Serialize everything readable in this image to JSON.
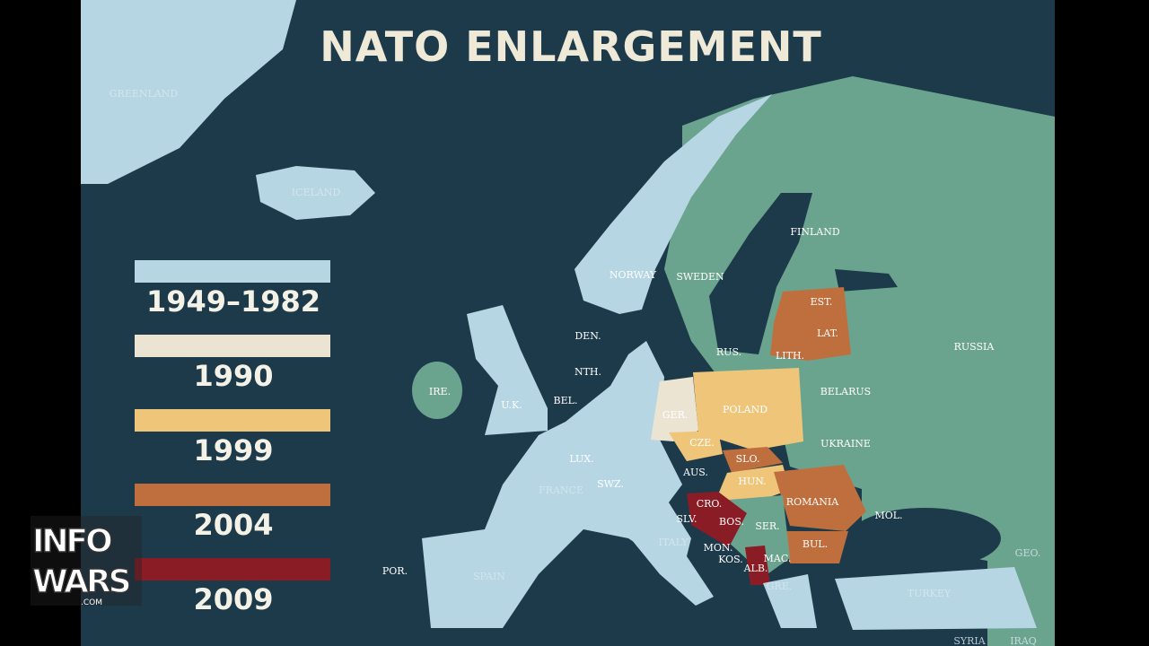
{
  "title": "NATO ENLARGEMENT",
  "legend": [
    {
      "label": "1949–1982",
      "color": "#b6d6e4"
    },
    {
      "label": "1990",
      "color": "#ece4d2"
    },
    {
      "label": "1999",
      "color": "#efc679"
    },
    {
      "label": "2004",
      "color": "#bf6f3e"
    },
    {
      "label": "2009",
      "color": "#8a1c25"
    }
  ],
  "countries": [
    "GREENLAND",
    "ICELAND",
    "NORWAY",
    "SWEDEN",
    "FINLAND",
    "RUSSIA",
    "EST.",
    "LAT.",
    "LITH.",
    "RUS.",
    "DEN.",
    "NTH.",
    "BEL.",
    "LUX.",
    "IRE.",
    "U.K.",
    "GER.",
    "POLAND",
    "BELARUS",
    "UKRAINE",
    "CZE.",
    "SLO.",
    "AUS.",
    "HUN.",
    "SWZ.",
    "FRANCE",
    "ROMANIA",
    "MOL.",
    "CRO.",
    "SLV.",
    "BOS.",
    "SER.",
    "MON.",
    "KOS.",
    "MAC.",
    "ALB.",
    "BUL.",
    "ITALY",
    "POR.",
    "SPAIN",
    "GRE.",
    "TURKEY",
    "GEO.",
    "SYRIA",
    "IRAQ"
  ],
  "logo": {
    "line1": "INFO",
    "line2": "WARS",
    "suffix": ".COM"
  }
}
